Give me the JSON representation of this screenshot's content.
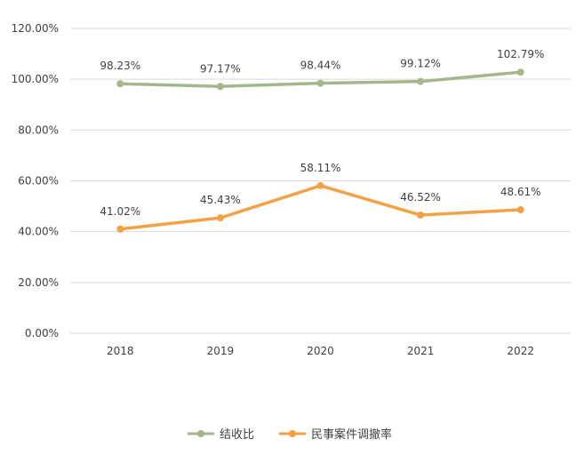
{
  "chart_data": {
    "type": "line",
    "categories": [
      "2018",
      "2019",
      "2020",
      "2021",
      "2022"
    ],
    "series": [
      {
        "name": "结收比",
        "values": [
          98.23,
          97.17,
          98.44,
          99.12,
          102.79
        ],
        "labels": [
          "98.23%",
          "97.17%",
          "98.44%",
          "99.12%",
          "102.79%"
        ],
        "color": "#A4B68C"
      },
      {
        "name": "民事案件调撤率",
        "values": [
          41.02,
          45.43,
          58.11,
          46.52,
          48.61
        ],
        "labels": [
          "41.02%",
          "45.43%",
          "58.11%",
          "46.52%",
          "48.61%"
        ],
        "color": "#F2A245"
      }
    ],
    "ylim": [
      0,
      120
    ],
    "yticks": [
      0,
      20,
      40,
      60,
      80,
      100,
      120
    ],
    "ytick_labels": [
      "0.00%",
      "20.00%",
      "40.00%",
      "60.00%",
      "80.00%",
      "100.00%",
      "120.00%"
    ],
    "grid": true,
    "legend": "bottom-center",
    "gridline_color": "#D9D9D9"
  }
}
